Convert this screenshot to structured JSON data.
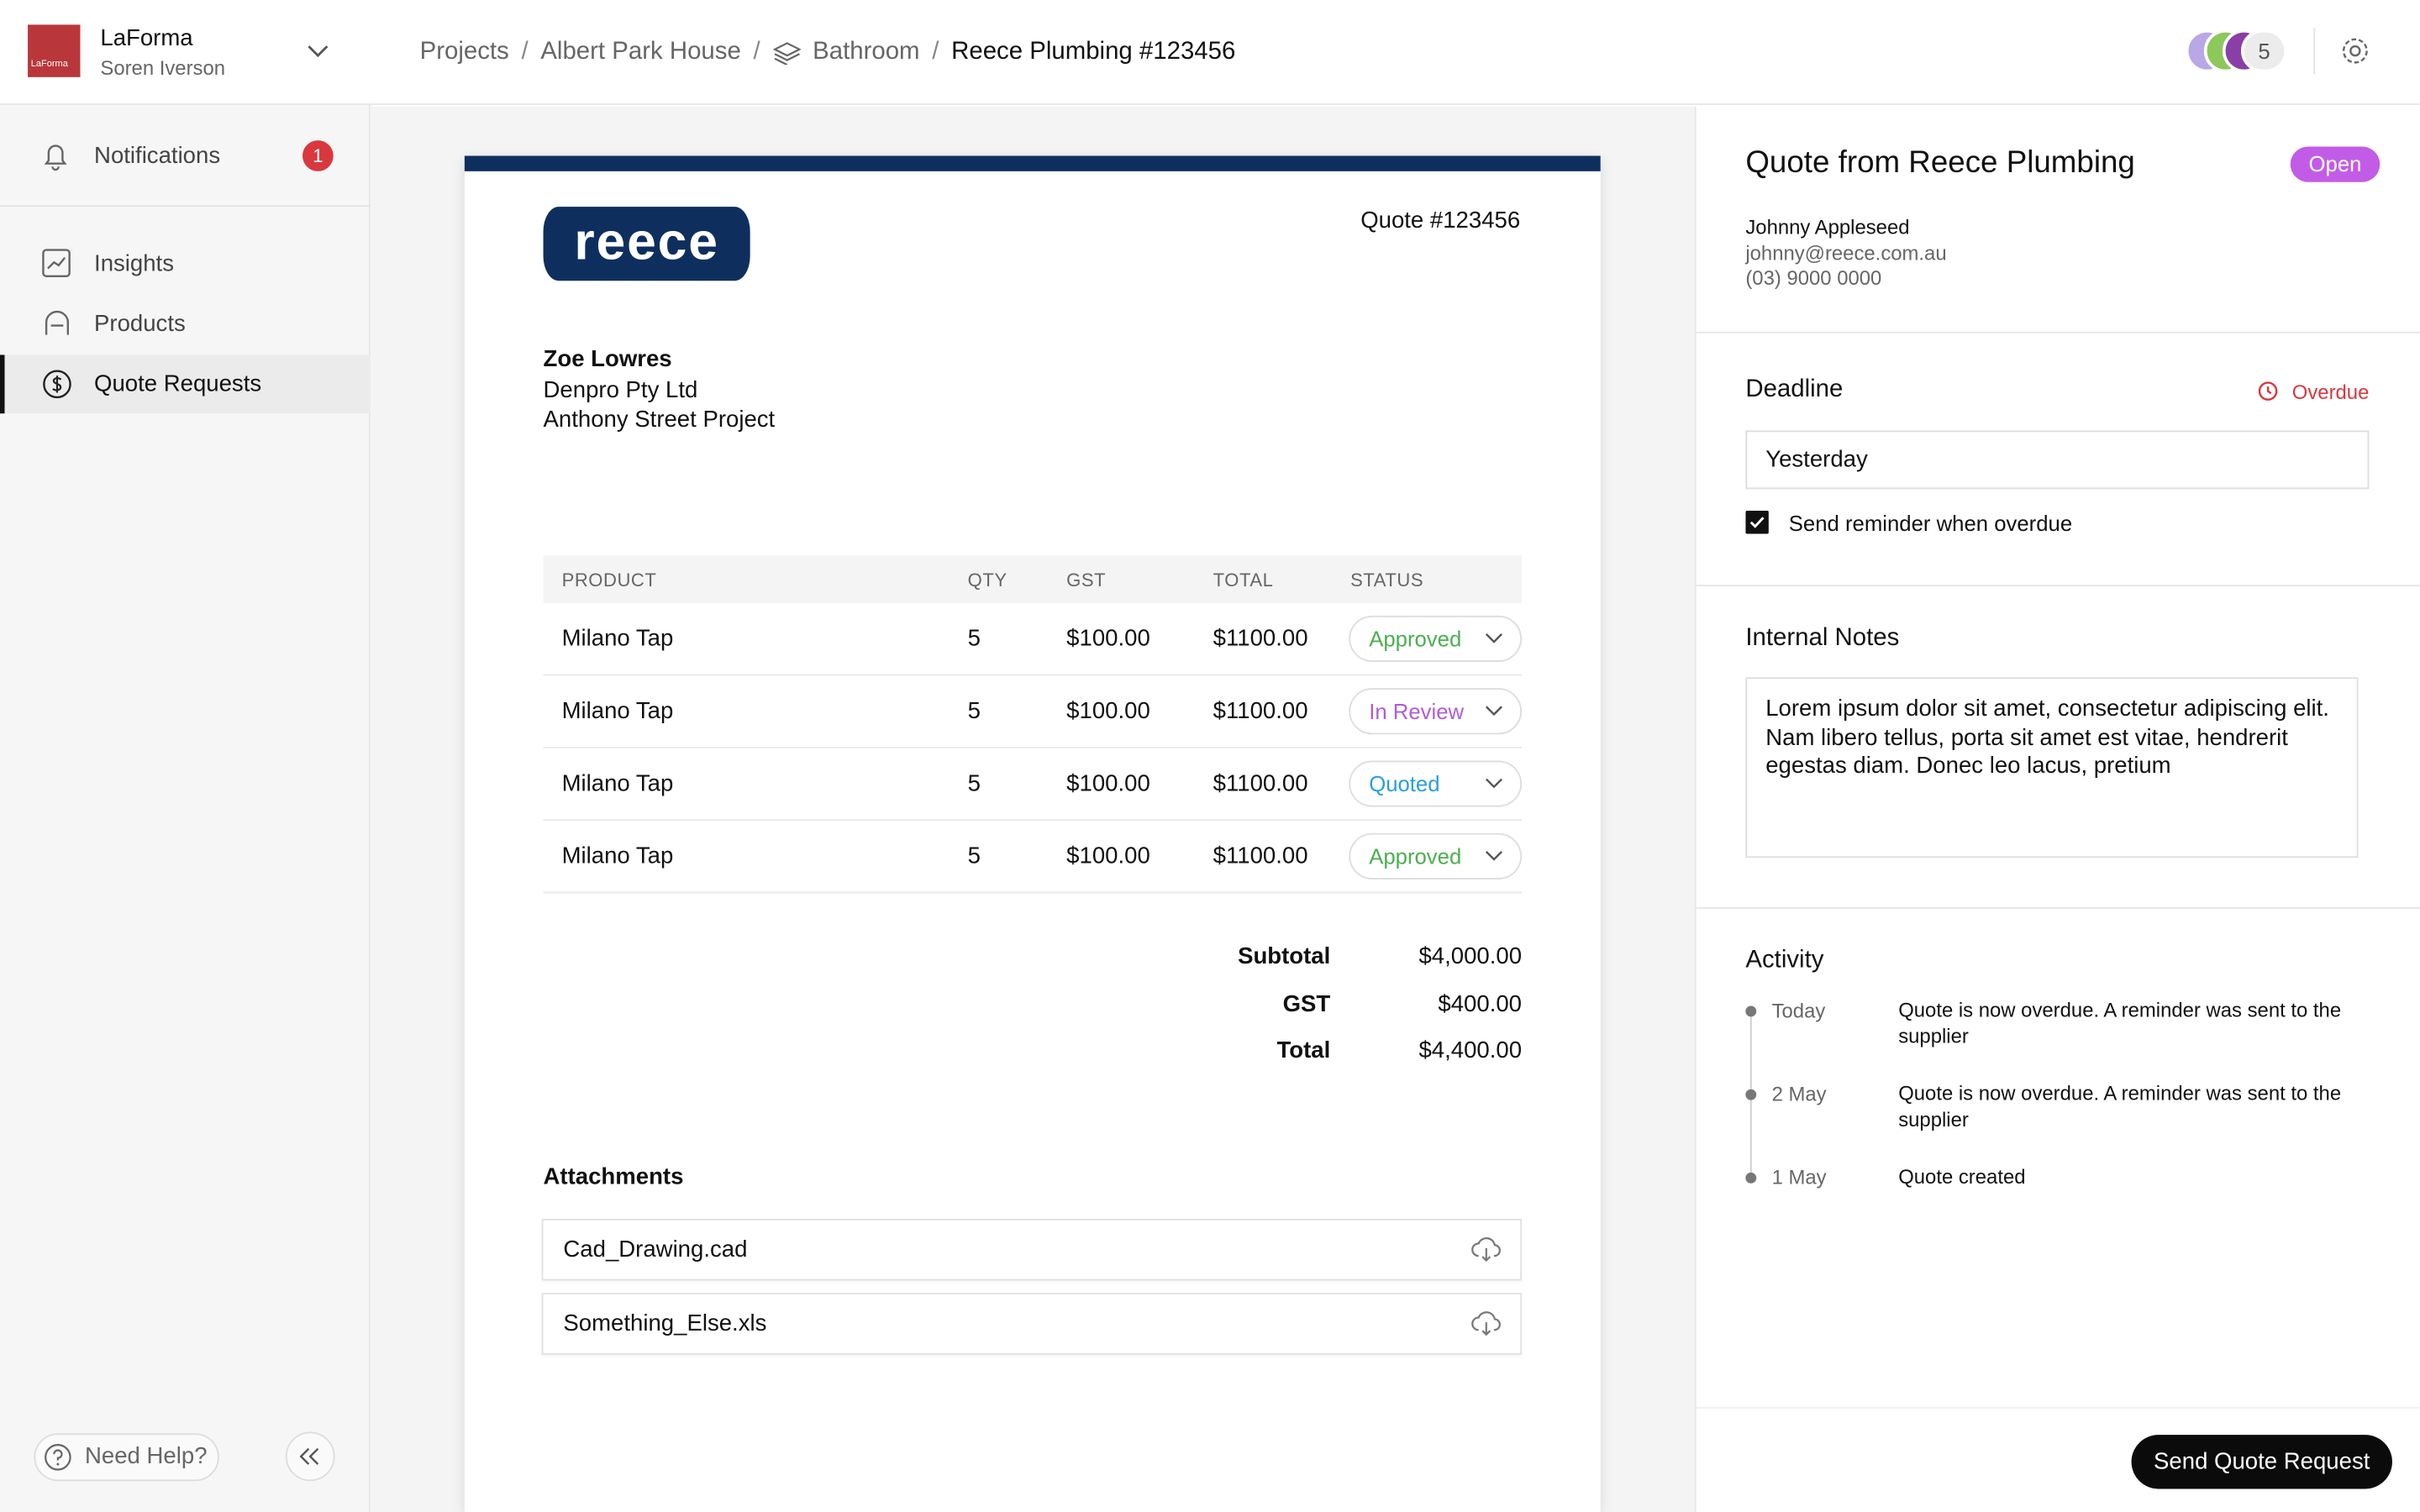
{
  "sidebar": {
    "org": "LaForma",
    "user": "Soren Iverson",
    "nav": [
      {
        "label": "Notifications",
        "badge": 1
      },
      {
        "label": "Insights"
      },
      {
        "label": "Products"
      },
      {
        "label": "Quote Requests"
      }
    ],
    "help": "Need Help?"
  },
  "breadcrumb": [
    "Projects",
    "Albert Park House",
    "Bathroom",
    "Reece Plumbing #123456"
  ],
  "collaborators_more": 5,
  "quote": {
    "logo": "reece",
    "number": "Quote #123456",
    "to": [
      "Zoe Lowres",
      "Denpro Pty Ltd",
      "Anthony Street Project"
    ],
    "table": {
      "headers": [
        "PRODUCT",
        "QTY",
        "GST",
        "TOTAL",
        "STATUS"
      ],
      "rows": [
        [
          "Milano Tap",
          5,
          "$100.00",
          "$1100.00",
          "Approved"
        ],
        [
          "Milano Tap",
          5,
          "$100.00",
          "$1100.00",
          "In Review"
        ],
        [
          "Milano Tap",
          5,
          "$100.00",
          "$1100.00",
          "Quoted"
        ],
        [
          "Milano Tap",
          5,
          "$100.00",
          "$1100.00",
          "Approved"
        ]
      ]
    },
    "totals": [
      {
        "label": "Subtotal",
        "value": "$4,000.00"
      },
      {
        "label": "GST",
        "value": "$400.00"
      },
      {
        "label": "Total",
        "value": "$4,400.00"
      }
    ],
    "attachments_title": "Attachments",
    "attachments": [
      "Cad_Drawing.cad",
      "Something_Else.xls"
    ]
  },
  "panel": {
    "title": "Quote from Reece Plumbing",
    "status": "Open",
    "contact": [
      "Johnny Appleseed",
      "johnny@reece.com.au",
      "(03) 9000 0000"
    ],
    "deadline_label": "Deadline",
    "deadline_state": "Overdue",
    "deadline_value": "Yesterday",
    "reminder": "Send reminder when overdue",
    "notes_label": "Internal Notes",
    "notes": "Lorem ipsum dolor sit amet, consectetur adipiscing elit. Nam libero tellus, porta sit amet est vitae, hendrerit egestas diam. Donec leo lacus, pretium",
    "activity_label": "Activity",
    "activity": [
      {
        "date": "Today",
        "text": "Quote is now overdue. A reminder was sent to the supplier"
      },
      {
        "date": "2 May",
        "text": "Quote is now overdue. A reminder was sent to the supplier"
      },
      {
        "date": "1 May",
        "text": "Quote created"
      }
    ],
    "button": "Send Quote Request"
  }
}
